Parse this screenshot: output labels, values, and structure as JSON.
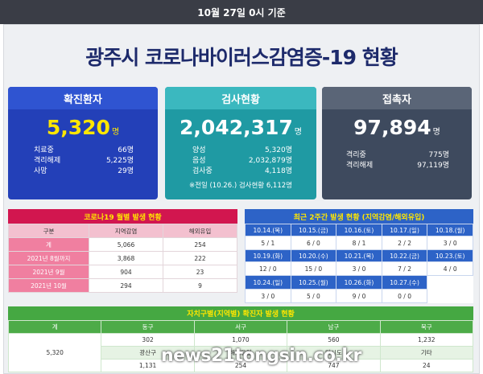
{
  "header": {
    "date_banner": "10월 27일 0시 기준"
  },
  "title": "광주시 코로나바이러스감염증-19 현황",
  "confirmed": {
    "label": "확진환자",
    "total": "5,320",
    "unit": "명",
    "rows": [
      {
        "label": "치료중",
        "value": "66명"
      },
      {
        "label": "격리해제",
        "value": "5,225명"
      },
      {
        "label": "사망",
        "value": "29명"
      }
    ]
  },
  "tests": {
    "label": "검사현황",
    "total": "2,042,317",
    "unit": "명",
    "rows": [
      {
        "label": "양성",
        "value": "5,320명"
      },
      {
        "label": "음성",
        "value": "2,032,879명"
      },
      {
        "label": "검사중",
        "value": "4,118명"
      }
    ],
    "note": "※전일 (10.26.) 검사현황 6,112명"
  },
  "contacts": {
    "label": "접촉자",
    "total": "97,894",
    "unit": "명",
    "rows": [
      {
        "label": "격리중",
        "value": "775명"
      },
      {
        "label": "격리해제",
        "value": "97,119명"
      }
    ]
  },
  "monthly": {
    "title": "코로나19 월별 발생 현황",
    "headers": [
      "구분",
      "지역감염",
      "해외유입"
    ],
    "rows": [
      {
        "label": "계",
        "local": "5,066",
        "overseas": "254"
      },
      {
        "label": "2021년 8월까지",
        "local": "3,868",
        "overseas": "222"
      },
      {
        "label": "2021년 9월",
        "local": "904",
        "overseas": "23"
      },
      {
        "label": "2021년 10월",
        "local": "294",
        "overseas": "9"
      }
    ]
  },
  "twoweek": {
    "title": "최근 2주간 발생 현황 (지역감염/해외유입)",
    "week1_dates": [
      "10.14.(목)",
      "10.15.(금)",
      "10.16.(토)",
      "10.17.(일)",
      "10.18.(월)"
    ],
    "week1_values": [
      "5 / 1",
      "6 / 0",
      "8 / 1",
      "2 / 2",
      "3 / 0"
    ],
    "week2_dates": [
      "10.19.(화)",
      "10.20.(수)",
      "10.21.(목)",
      "10.22.(금)",
      "10.23.(토)"
    ],
    "week2_values": [
      "12 / 0",
      "15 / 0",
      "3 / 0",
      "7 / 2",
      "4 / 0"
    ],
    "week3_dates": [
      "10.24.(일)",
      "10.25.(월)",
      "10.26.(화)",
      "10.27.(수)"
    ],
    "week3_values": [
      "3 / 0",
      "5 / 0",
      "9 / 0",
      "0 / 0"
    ]
  },
  "district": {
    "title": "자치구별(지역별) 확진자 발생 현황",
    "total_label": "계",
    "total_value": "5,320",
    "row1_labels": [
      "동구",
      "서구",
      "남구",
      "북구"
    ],
    "row1_values": [
      "302",
      "1,070",
      "560",
      "1,232"
    ],
    "row2_labels": [
      "광산구",
      "해외유입",
      "타시도",
      "기타"
    ],
    "row2_values": [
      "1,131",
      "254",
      "747",
      "24"
    ]
  },
  "watermark": "news21tongsin.co.kr"
}
